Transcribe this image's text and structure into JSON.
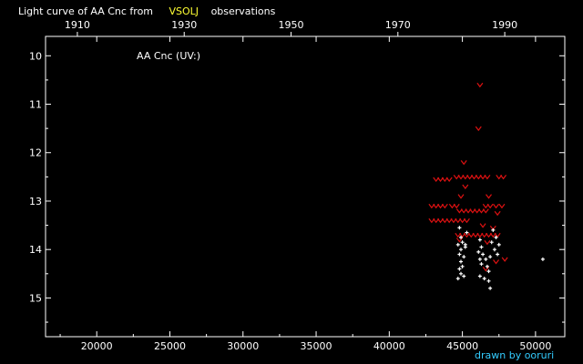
{
  "chart_data": {
    "type": "scatter",
    "title": {
      "prefix": "Light curve of AA Cnc from",
      "source": "VSOLJ",
      "suffix": "observations"
    },
    "inner_label": "AA Cnc (UV:)",
    "credit": "drawn by ooruri",
    "x_axis": {
      "range": [
        16500,
        52000
      ],
      "ticks": [
        20000,
        25000,
        30000,
        35000,
        40000,
        45000,
        50000
      ],
      "tick_labels": [
        "20000",
        "25000",
        "30000",
        "35000",
        "40000",
        "45000",
        "50000"
      ]
    },
    "x_top_axis": {
      "ticks": [
        1910,
        1930,
        1950,
        1970,
        1990
      ],
      "tick_labels": [
        "1910",
        "1930",
        "1950",
        "1970",
        "1990"
      ]
    },
    "y_axis": {
      "range": [
        9.6,
        15.8
      ],
      "inverted": true,
      "ticks": [
        10,
        11,
        12,
        13,
        14,
        15
      ],
      "tick_labels": [
        "10",
        "11",
        "12",
        "13",
        "14",
        "15"
      ]
    },
    "series": [
      {
        "kind": "fainter-than",
        "color": "#dd1111",
        "marker": "v",
        "points": [
          [
            46200,
            10.6
          ],
          [
            46100,
            11.5
          ],
          [
            45100,
            12.2
          ],
          [
            43200,
            12.55
          ],
          [
            43500,
            12.55
          ],
          [
            43800,
            12.55
          ],
          [
            44100,
            12.55
          ],
          [
            44600,
            12.5
          ],
          [
            44900,
            12.5
          ],
          [
            45200,
            12.5
          ],
          [
            45500,
            12.5
          ],
          [
            45800,
            12.5
          ],
          [
            46100,
            12.5
          ],
          [
            46400,
            12.5
          ],
          [
            46700,
            12.5
          ],
          [
            47500,
            12.5
          ],
          [
            47800,
            12.5
          ],
          [
            45200,
            12.7
          ],
          [
            44900,
            12.9
          ],
          [
            46800,
            12.9
          ],
          [
            42900,
            13.1
          ],
          [
            43200,
            13.1
          ],
          [
            43500,
            13.1
          ],
          [
            43800,
            13.1
          ],
          [
            44300,
            13.1
          ],
          [
            44600,
            13.1
          ],
          [
            46600,
            13.1
          ],
          [
            46900,
            13.1
          ],
          [
            47300,
            13.1
          ],
          [
            47700,
            13.1
          ],
          [
            44800,
            13.2
          ],
          [
            45100,
            13.2
          ],
          [
            45400,
            13.2
          ],
          [
            45700,
            13.2
          ],
          [
            46000,
            13.2
          ],
          [
            46300,
            13.2
          ],
          [
            46600,
            13.2
          ],
          [
            47400,
            13.25
          ],
          [
            42900,
            13.4
          ],
          [
            43200,
            13.4
          ],
          [
            43500,
            13.4
          ],
          [
            43800,
            13.4
          ],
          [
            44100,
            13.4
          ],
          [
            44400,
            13.4
          ],
          [
            44700,
            13.4
          ],
          [
            45000,
            13.4
          ],
          [
            45300,
            13.4
          ],
          [
            46400,
            13.5
          ],
          [
            47100,
            13.55
          ],
          [
            44700,
            13.7
          ],
          [
            45000,
            13.7
          ],
          [
            45300,
            13.7
          ],
          [
            45600,
            13.7
          ],
          [
            45900,
            13.7
          ],
          [
            46200,
            13.7
          ],
          [
            46500,
            13.7
          ],
          [
            46800,
            13.7
          ],
          [
            47100,
            13.7
          ],
          [
            47400,
            13.7
          ],
          [
            44800,
            13.8
          ],
          [
            46700,
            13.85
          ],
          [
            47900,
            14.2
          ],
          [
            47300,
            14.25
          ],
          [
            46600,
            14.4
          ]
        ]
      },
      {
        "kind": "visual",
        "color": "#ffffff",
        "marker": "+",
        "points": [
          [
            44800,
            13.55
          ],
          [
            44900,
            13.75
          ],
          [
            45000,
            13.85
          ],
          [
            44700,
            13.9
          ],
          [
            45200,
            13.95
          ],
          [
            44900,
            14.0
          ],
          [
            44800,
            14.1
          ],
          [
            45100,
            14.15
          ],
          [
            44900,
            14.25
          ],
          [
            45000,
            14.35
          ],
          [
            44800,
            14.4
          ],
          [
            44900,
            14.5
          ],
          [
            45100,
            14.55
          ],
          [
            44700,
            14.6
          ],
          [
            45300,
            13.65
          ],
          [
            45200,
            13.9
          ],
          [
            46200,
            13.8
          ],
          [
            46300,
            13.95
          ],
          [
            46100,
            14.05
          ],
          [
            46400,
            14.1
          ],
          [
            46200,
            14.2
          ],
          [
            46600,
            14.2
          ],
          [
            46300,
            14.3
          ],
          [
            46700,
            14.35
          ],
          [
            46800,
            14.45
          ],
          [
            46200,
            14.55
          ],
          [
            46500,
            14.6
          ],
          [
            46800,
            14.65
          ],
          [
            46900,
            14.8
          ],
          [
            47100,
            13.6
          ],
          [
            47300,
            13.75
          ],
          [
            47000,
            13.85
          ],
          [
            47500,
            13.9
          ],
          [
            47200,
            14.0
          ],
          [
            47400,
            14.1
          ],
          [
            46900,
            14.15
          ],
          [
            50500,
            14.2
          ]
        ]
      }
    ]
  }
}
